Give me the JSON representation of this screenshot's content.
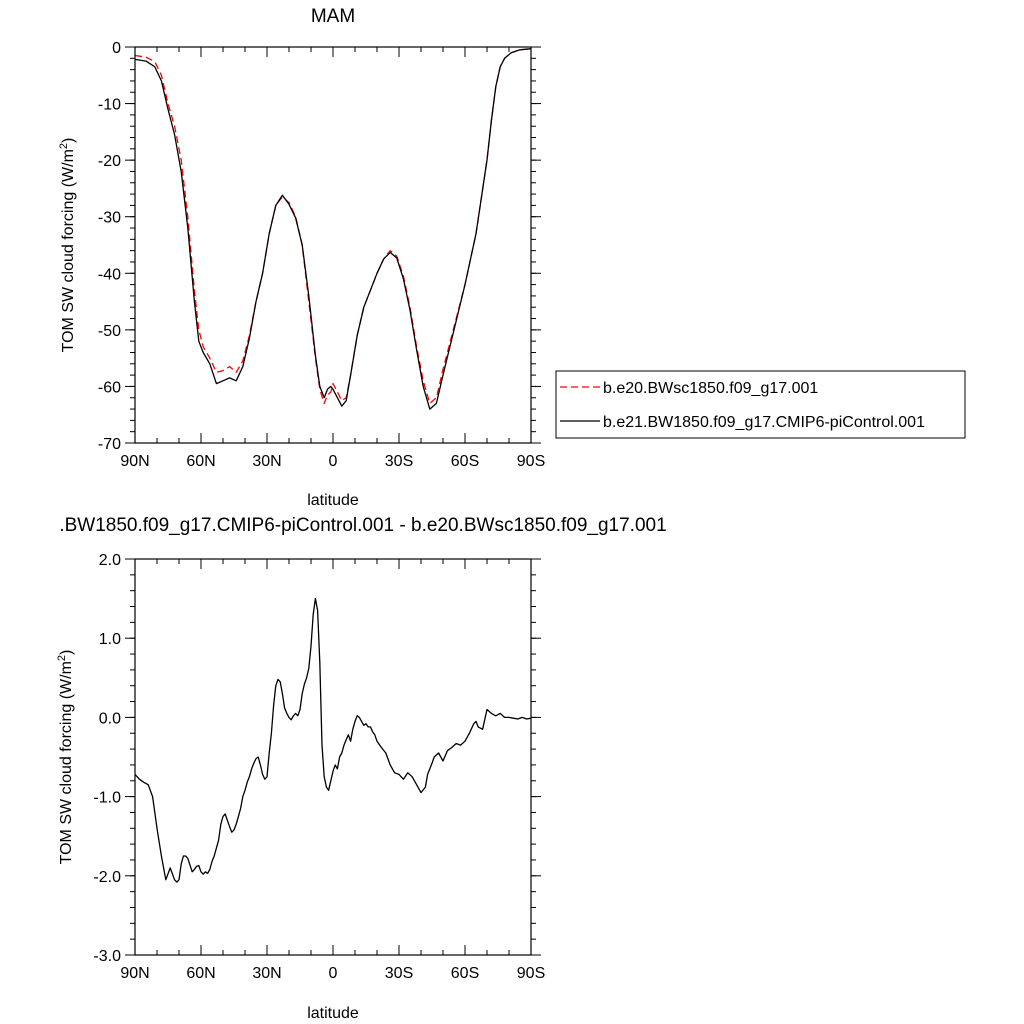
{
  "chart_data": [
    {
      "type": "line",
      "title": "MAM",
      "xlabel": "latitude",
      "ylabel": "TOM SW cloud forcing (W/m",
      "ylabel_sup": "2",
      "ylabel_end": ")",
      "xlim": [
        90,
        -90
      ],
      "ylim": [
        -70,
        0
      ],
      "x_ticks": [
        90,
        60,
        30,
        0,
        -30,
        -60,
        -90
      ],
      "x_tick_labels": [
        "90N",
        "60N",
        "30N",
        "0",
        "30S",
        "60S",
        "90S"
      ],
      "y_ticks": [
        0,
        -10,
        -20,
        -30,
        -40,
        -50,
        -60,
        -70
      ],
      "y_tick_labels": [
        "0",
        "-10",
        "-20",
        "-30",
        "-40",
        "-50",
        "-60",
        "-70"
      ],
      "grid": false,
      "legend_position": "right",
      "series": [
        {
          "name": "b.e20.BWsc1850.f09_g17.001",
          "color": "#ff0000",
          "dash": "dashed",
          "x": [
            90,
            85,
            81,
            78,
            75,
            72,
            69,
            66,
            63,
            61,
            59,
            56,
            53,
            50,
            47,
            44,
            41,
            38,
            35,
            32,
            29,
            26,
            23,
            20,
            17,
            14,
            11,
            8,
            6,
            4,
            2.5,
            1,
            0,
            -2,
            -4,
            -6,
            -8,
            -11,
            -14,
            -17,
            -20,
            -23,
            -26,
            -29,
            -32,
            -35,
            -38,
            -41,
            -44,
            -47,
            -50,
            -55,
            -60,
            -65,
            -70,
            -72,
            -74,
            -76,
            -78,
            -81,
            -85,
            -90
          ],
          "y": [
            -1.5,
            -1.8,
            -2.6,
            -5,
            -10,
            -14,
            -20,
            -30,
            -43,
            -50,
            -53,
            -55,
            -57.5,
            -57.2,
            -56.5,
            -57.5,
            -55.5,
            -51,
            -45,
            -40,
            -33,
            -28,
            -26.5,
            -27.5,
            -30,
            -35,
            -45,
            -55,
            -60.5,
            -63,
            -61.5,
            -61,
            -59.5,
            -61,
            -62.5,
            -62,
            -58,
            -51,
            -46,
            -43,
            -40,
            -37.5,
            -36,
            -37,
            -40.5,
            -46,
            -53,
            -59,
            -63,
            -62,
            -57,
            -49.5,
            -42,
            -33,
            -20,
            -13,
            -7,
            -3.5,
            -2,
            -1,
            -0.5,
            -0.3
          ]
        },
        {
          "name": "b.e21.BW1850.f09_g17.CMIP6-piControl.001",
          "color": "#000000",
          "dash": "solid",
          "x": [
            90,
            85,
            81,
            78,
            75,
            72,
            69,
            66,
            63,
            61,
            59,
            56,
            53,
            50,
            47,
            44,
            41,
            38,
            35,
            32,
            29,
            26,
            23,
            20,
            17,
            14,
            11,
            8,
            6,
            4,
            2.5,
            1,
            0,
            -2,
            -4,
            -6,
            -8,
            -11,
            -14,
            -17,
            -20,
            -23,
            -26,
            -29,
            -32,
            -35,
            -38,
            -41,
            -44,
            -47,
            -50,
            -55,
            -60,
            -65,
            -70,
            -72,
            -74,
            -76,
            -78,
            -81,
            -85,
            -90
          ],
          "y": [
            -2.2,
            -2.5,
            -3.5,
            -6,
            -11,
            -15.5,
            -22,
            -32,
            -45,
            -52,
            -54,
            -56,
            -59.5,
            -59,
            -58.5,
            -59,
            -56.5,
            -51.5,
            -45,
            -40,
            -33,
            -28,
            -26.2,
            -27.8,
            -30.2,
            -35,
            -44,
            -54.5,
            -60,
            -62,
            -60.5,
            -60,
            -60.5,
            -62,
            -63.5,
            -62.5,
            -58,
            -51,
            -46,
            -43,
            -40,
            -37.5,
            -36.3,
            -37.3,
            -41,
            -46.5,
            -53.5,
            -60,
            -64,
            -63,
            -58,
            -50,
            -42,
            -33,
            -20,
            -13,
            -7,
            -3.5,
            -2,
            -1,
            -0.5,
            -0.3
          ]
        }
      ]
    },
    {
      "type": "line",
      "title": ".BW1850.f09_g17.CMIP6-piControl.001 - b.e20.BWsc1850.f09_g17.001",
      "xlabel": "latitude",
      "ylabel": "TOM SW cloud forcing (W/m",
      "ylabel_sup": "2",
      "ylabel_end": ")",
      "xlim": [
        90,
        -90
      ],
      "ylim": [
        -3.0,
        2.0
      ],
      "x_ticks": [
        90,
        60,
        30,
        0,
        -30,
        -60,
        -90
      ],
      "x_tick_labels": [
        "90N",
        "60N",
        "30N",
        "0",
        "30S",
        "60S",
        "90S"
      ],
      "y_ticks": [
        2.0,
        1.0,
        0.0,
        -1.0,
        -2.0,
        -3.0
      ],
      "y_tick_labels": [
        "2.0",
        "1.0",
        "0.0",
        "-1.0",
        "-2.0",
        "-3.0"
      ],
      "grid": false,
      "series": [
        {
          "color": "#000000",
          "dash": "solid",
          "x": [
            90,
            88,
            86,
            84,
            82,
            80,
            78,
            76,
            74,
            72,
            71,
            70,
            69,
            68,
            67,
            66,
            64,
            63,
            62,
            61,
            60,
            59,
            58,
            57,
            56,
            55,
            54,
            53,
            52,
            51,
            50,
            49,
            48,
            47,
            46,
            45,
            44,
            43,
            42,
            41,
            40,
            39,
            38,
            37,
            36,
            35,
            34,
            33,
            32,
            31,
            30,
            29,
            28,
            27,
            26,
            25,
            24,
            23,
            22,
            21,
            20,
            19,
            18,
            17,
            16,
            15,
            14,
            13,
            12,
            11,
            10,
            9,
            8,
            7,
            6,
            5,
            4,
            3,
            2,
            1,
            0,
            -1,
            -2,
            -3,
            -4,
            -5,
            -6,
            -7,
            -8,
            -9,
            -10,
            -11,
            -12,
            -13,
            -14,
            -15,
            -16,
            -17,
            -18,
            -19,
            -20,
            -22,
            -24,
            -26,
            -28,
            -30,
            -32,
            -34,
            -36,
            -38,
            -40,
            -42,
            -43,
            -44,
            -45,
            -46,
            -48,
            -50,
            -52,
            -54,
            -56,
            -58,
            -60,
            -62,
            -64,
            -65,
            -66,
            -68,
            -70,
            -72,
            -74,
            -76,
            -78,
            -80,
            -82,
            -84,
            -86,
            -88,
            -90
          ],
          "y": [
            -0.72,
            -0.78,
            -0.82,
            -0.85,
            -1.0,
            -1.4,
            -1.75,
            -2.05,
            -1.9,
            -2.05,
            -2.08,
            -2.05,
            -1.85,
            -1.75,
            -1.75,
            -1.78,
            -1.95,
            -1.92,
            -1.88,
            -1.87,
            -1.95,
            -1.98,
            -1.95,
            -1.97,
            -1.92,
            -1.82,
            -1.75,
            -1.65,
            -1.55,
            -1.35,
            -1.25,
            -1.22,
            -1.3,
            -1.38,
            -1.45,
            -1.42,
            -1.35,
            -1.25,
            -1.15,
            -1.0,
            -0.92,
            -0.82,
            -0.75,
            -0.65,
            -0.58,
            -0.52,
            -0.5,
            -0.6,
            -0.72,
            -0.78,
            -0.75,
            -0.45,
            -0.2,
            0.15,
            0.4,
            0.48,
            0.45,
            0.3,
            0.12,
            0.05,
            0.0,
            -0.03,
            0.02,
            0.05,
            0.02,
            0.1,
            0.3,
            0.42,
            0.5,
            0.62,
            0.9,
            1.3,
            1.5,
            1.35,
            0.7,
            -0.35,
            -0.75,
            -0.88,
            -0.92,
            -0.8,
            -0.68,
            -0.6,
            -0.65,
            -0.5,
            -0.45,
            -0.35,
            -0.28,
            -0.22,
            -0.3,
            -0.15,
            -0.05,
            0.02,
            0.0,
            -0.05,
            -0.1,
            -0.08,
            -0.12,
            -0.12,
            -0.18,
            -0.22,
            -0.3,
            -0.38,
            -0.45,
            -0.6,
            -0.7,
            -0.72,
            -0.78,
            -0.7,
            -0.75,
            -0.85,
            -0.95,
            -0.88,
            -0.72,
            -0.65,
            -0.58,
            -0.5,
            -0.45,
            -0.55,
            -0.42,
            -0.38,
            -0.33,
            -0.35,
            -0.3,
            -0.2,
            -0.08,
            -0.05,
            -0.12,
            -0.15,
            0.1,
            0.05,
            0.02,
            0.05,
            0.0,
            0.0,
            -0.01,
            -0.02,
            0.0,
            -0.02,
            -0.01
          ]
        }
      ]
    }
  ]
}
